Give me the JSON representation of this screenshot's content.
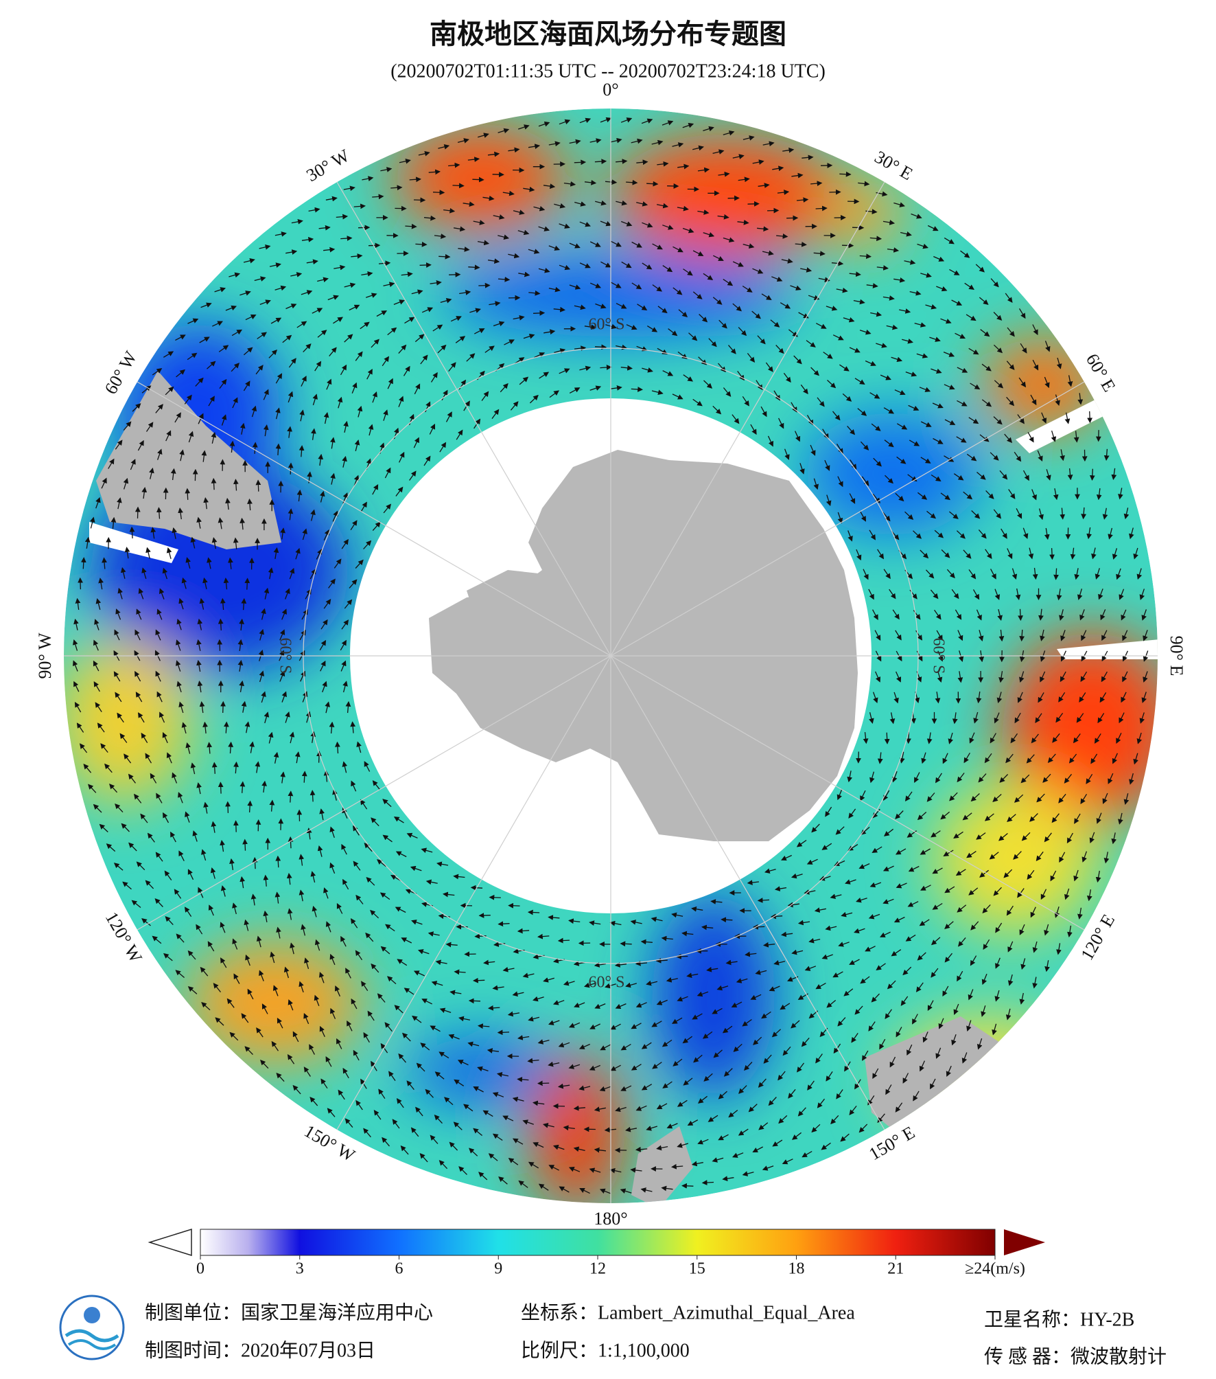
{
  "header": {
    "title": "南极地区海面风场分布专题图",
    "subtitle": "(20200702T01:11:35 UTC -- 20200702T23:24:18 UTC)"
  },
  "map": {
    "lon_labels": [
      "0°",
      "30° E",
      "60° E",
      "90° E",
      "120° E",
      "150° E",
      "180°",
      "150° W",
      "120° W",
      "90° W",
      "60° W",
      "30° W"
    ],
    "lat_labels": [
      "60° S",
      "60° S",
      "60° S",
      "60° S"
    ]
  },
  "colorbar": {
    "range": [
      0,
      24
    ],
    "ticks": [
      0,
      3,
      6,
      9,
      12,
      15,
      18,
      21,
      {
        "value": 24,
        "label": "≥24(m/s)"
      }
    ]
  },
  "footer": {
    "unit": "制图单位：国家卫星海洋应用中心",
    "date": "制图时间：2020年07月03日",
    "crs": "坐标系：Lambert_Azimuthal_Equal_Area",
    "scale": "比例尺：1:1,100,000",
    "satellite": "卫星名称：HY-2B",
    "sensor": "传 感 器：微波散射计"
  }
}
